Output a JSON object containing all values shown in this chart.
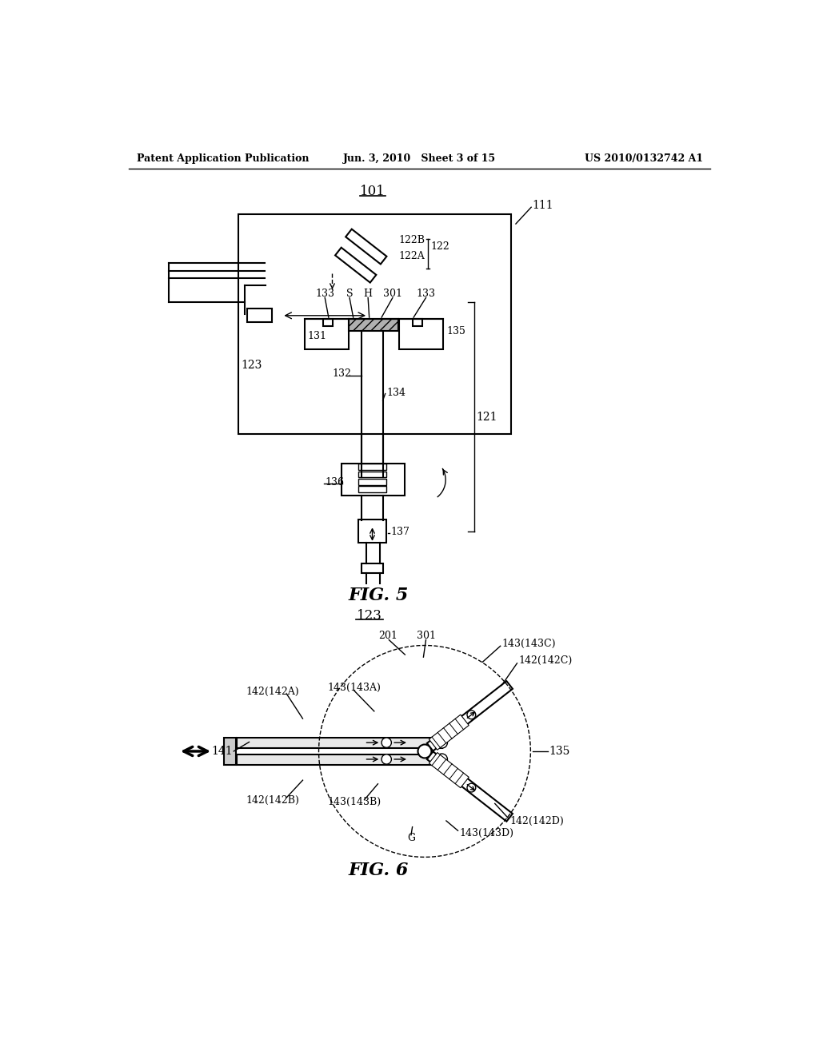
{
  "fig_width": 10.24,
  "fig_height": 13.2,
  "bg_color": "#ffffff",
  "header_left": "Patent Application Publication",
  "header_mid": "Jun. 3, 2010   Sheet 3 of 15",
  "header_right": "US 2010/0132742 A1"
}
